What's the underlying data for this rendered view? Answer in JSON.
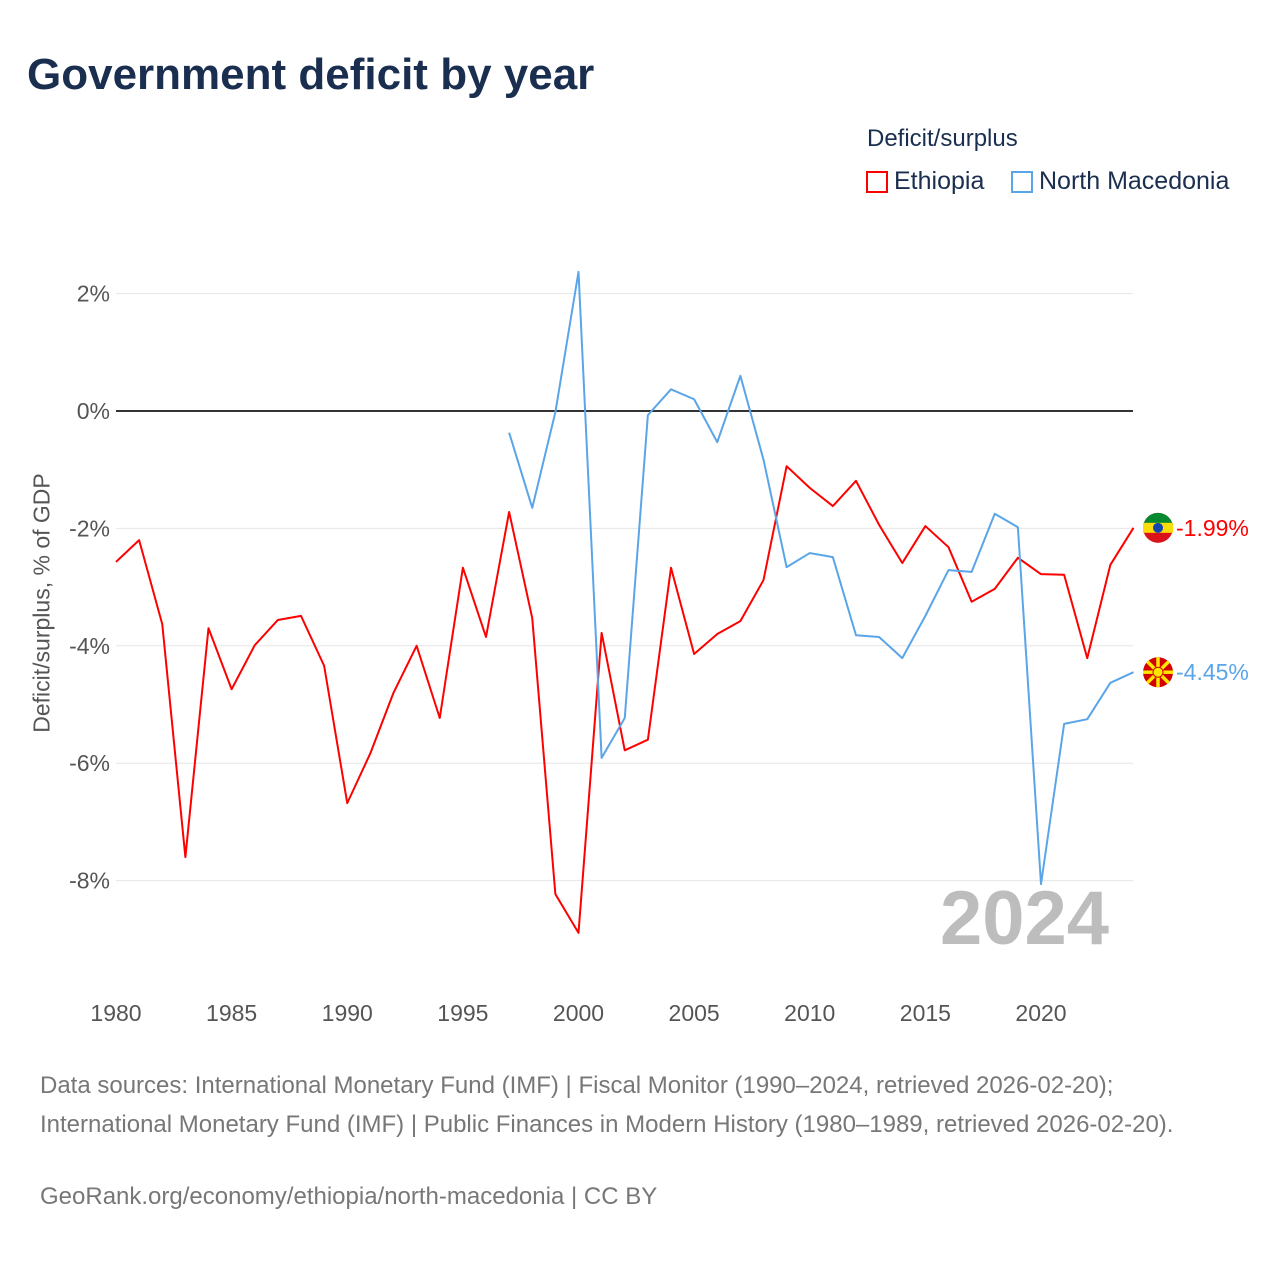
{
  "title": "Government deficit by year",
  "legend": {
    "title": "Deficit/surplus",
    "items": [
      {
        "label": "Ethiopia",
        "color": "#ff0000"
      },
      {
        "label": "North Macedonia",
        "color": "#5aa5e8"
      }
    ]
  },
  "current_year": "2024",
  "sources": "Data sources: International Monetary Fund (IMF) | Fiscal Monitor (1990–2024, retrieved 2026-02-20); International Monetary Fund (IMF) | Public Finances in Modern History (1980–1989, retrieved 2026-02-20).",
  "credit": "GeoRank.org/economy/ethiopia/north-macedonia | CC BY",
  "chart_data": {
    "type": "line",
    "ylabel": "Deficit/surplus, % of GDP",
    "xlim": [
      1980,
      2024
    ],
    "ylim": [
      -9.5,
      2.5
    ],
    "x_ticks": [
      1980,
      1985,
      1990,
      1995,
      2000,
      2005,
      2010,
      2015,
      2020
    ],
    "y_ticks": [
      2,
      0,
      -2,
      -4,
      -6,
      -8
    ],
    "y_tick_labels": [
      "2%",
      "0%",
      "-2%",
      "-4%",
      "-6%",
      "-8%"
    ],
    "grid": true,
    "series": [
      {
        "name": "Ethiopia",
        "color": "#ff0000",
        "end_label": "-1.99%",
        "start_year": 1980,
        "values": [
          -2.57,
          -2.2,
          -3.63,
          -7.6,
          -3.7,
          -4.74,
          -3.99,
          -3.56,
          -3.49,
          -4.34,
          -6.68,
          -5.83,
          -4.8,
          -4.0,
          -5.23,
          -2.67,
          -3.85,
          -1.72,
          -3.53,
          -8.23,
          -8.89,
          -3.78,
          -5.78,
          -5.6,
          -2.67,
          -4.14,
          -3.8,
          -3.58,
          -2.88,
          -0.94,
          -1.31,
          -1.62,
          -1.19,
          -1.94,
          -2.59,
          -1.96,
          -2.32,
          -3.25,
          -3.03,
          -2.5,
          -2.78,
          -2.79,
          -4.21,
          -2.62,
          -1.99
        ]
      },
      {
        "name": "North Macedonia",
        "color": "#5aa5e8",
        "end_label": "-4.45%",
        "start_year": 1997,
        "values": [
          -0.37,
          -1.65,
          -0.02,
          2.37,
          -5.91,
          -5.23,
          -0.07,
          0.37,
          0.2,
          -0.53,
          0.6,
          -0.83,
          -2.66,
          -2.42,
          -2.49,
          -3.82,
          -3.85,
          -4.21,
          -3.49,
          -2.71,
          -2.74,
          -1.75,
          -1.98,
          -8.06,
          -5.33,
          -5.25,
          -4.63,
          -4.45
        ]
      }
    ]
  }
}
